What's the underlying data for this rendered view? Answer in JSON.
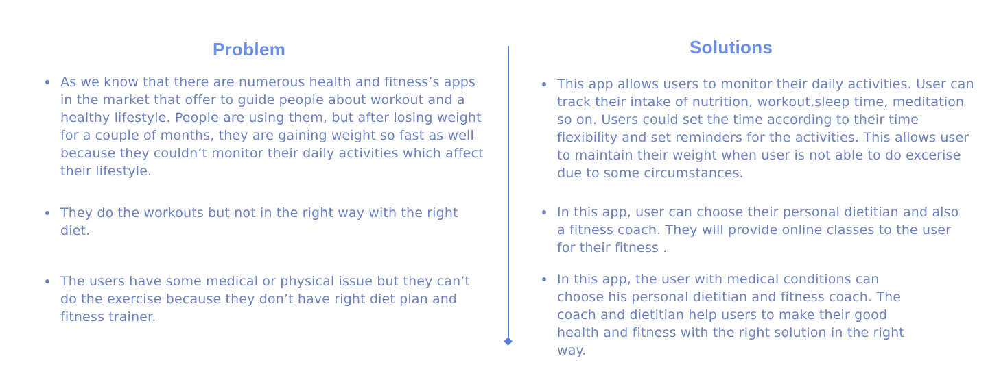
{
  "problem": {
    "heading": "Problem",
    "items": [
      {
        "text": "As we know that there are numerous health and fitness’s apps in the market that offer to guide people about workout and a healthy lifestyle. People are using them, but after losing weight for a couple of months, they are gaining weight so fast as well because they couldn’t monitor their daily activities which affect their lifestyle."
      },
      {
        "text": "They do the workouts but not in the right way with the right diet."
      },
      {
        "text": "The users  have some medical or physical issue but they can’t do the exercise because they don’t have right diet plan and fitness trainer."
      }
    ]
  },
  "solutions": {
    "heading": "Solutions",
    "items": [
      {
        "text": "This app allows users to monitor their daily activities. User can track their intake of nutrition, workout,sleep time, meditation so on. Users could set the time according to their time flexibility and set reminders for the activities. This allows user to maintain their weight when user is not able to do excerise due to some circumstances."
      },
      {
        "text": "In this app, user can choose their personal dietitian and also a fitness coach. They will provide online classes to the user for their fitness ."
      },
      {
        "text": "In this app, the user with medical conditions can choose his personal dietitian and fitness coach. The coach and dietitian help users to make their good health and fitness with the right solution in the right way."
      }
    ]
  },
  "colors": {
    "heading": "#6b8ee6",
    "body_text": "#6d82bf",
    "divider": "#5e7fd9"
  }
}
